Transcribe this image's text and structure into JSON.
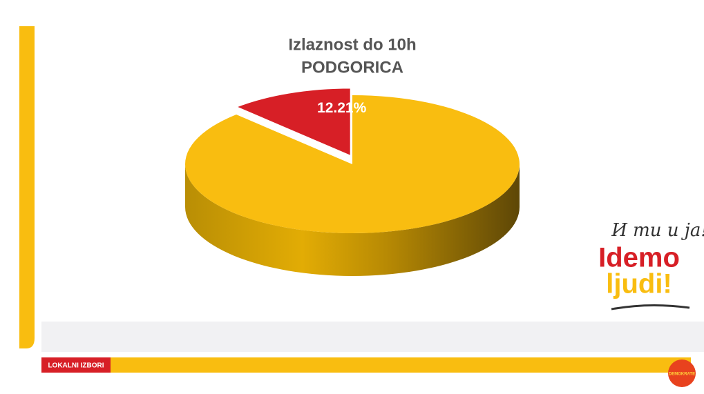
{
  "chart_data": {
    "type": "pie",
    "title": "Izlaznost do 10h",
    "subtitle": "PODGORICA",
    "values": [
      12.21,
      87.79
    ],
    "value_labels": [
      "12.21%",
      null
    ],
    "colors": [
      "#d71f26",
      "#f9bd10"
    ],
    "start_angle": 90,
    "direction": "counterclockwise",
    "exploded": [
      true,
      false
    ]
  },
  "branding": {
    "footer_label": "LOKALNI IZBORI",
    "slogan_top": "И ти и ја!",
    "slogan_line1": "Idemo",
    "slogan_line2": "ljudi!",
    "party_logo": "DEMOKRATE"
  }
}
